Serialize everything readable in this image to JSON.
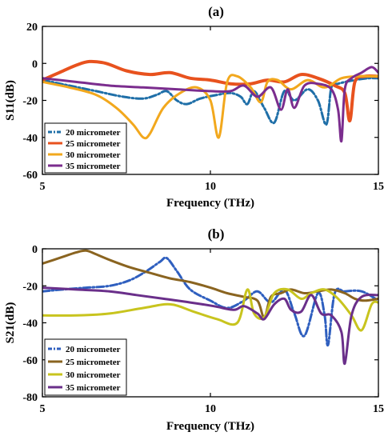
{
  "chart_data": [
    {
      "type": "line",
      "panel_label": "(a)",
      "xlabel": "Frequency (THz)",
      "ylabel": "S11(dB)",
      "xlim": [
        5,
        15
      ],
      "ylim": [
        -60,
        20
      ],
      "xticks": [
        5,
        10,
        15
      ],
      "yticks": [
        20,
        0,
        -20,
        -40,
        -60
      ],
      "grid": false,
      "legend_position": "lower-left",
      "series": [
        {
          "name": "20 micrometer",
          "color": "#1f6fa8",
          "style": "dashdot",
          "x": [
            5.0,
            5.8,
            6.6,
            7.4,
            8.0,
            8.4,
            8.7,
            9.0,
            9.3,
            9.7,
            10.2,
            10.6,
            10.9,
            11.1,
            11.3,
            11.6,
            11.9,
            12.2,
            12.5,
            12.9,
            13.2,
            13.45,
            13.6,
            13.8,
            14.3,
            14.7,
            15.0
          ],
          "y": [
            -9,
            -12,
            -15,
            -18,
            -19,
            -17,
            -15,
            -20,
            -22,
            -19,
            -17,
            -16,
            -18,
            -22,
            -15,
            -24,
            -32,
            -15,
            -20,
            -14,
            -20,
            -33,
            -13,
            -11,
            -9,
            -8,
            -8
          ]
        },
        {
          "name": "25 micrometer",
          "color": "#e8521e",
          "style": "solid",
          "x": [
            5.0,
            5.5,
            6.0,
            6.4,
            6.9,
            7.5,
            8.2,
            8.8,
            9.4,
            10.0,
            10.6,
            11.2,
            11.7,
            12.2,
            12.7,
            13.2,
            13.7,
            14.0,
            14.15,
            14.3,
            14.6,
            15.0
          ],
          "y": [
            -9,
            -5,
            -1,
            1,
            0,
            -4,
            -6,
            -5,
            -8,
            -9,
            -11,
            -11,
            -9,
            -10,
            -6,
            -8,
            -12,
            -16,
            -31,
            -10,
            -7,
            -7
          ]
        },
        {
          "name": "30 micrometer",
          "color": "#f2a81d",
          "style": "solid",
          "x": [
            5.0,
            5.8,
            6.6,
            7.2,
            7.7,
            8.0,
            8.2,
            8.6,
            9.1,
            9.6,
            10.0,
            10.25,
            10.5,
            10.8,
            11.2,
            11.5,
            11.7,
            12.0,
            12.4,
            12.9,
            13.4,
            13.9,
            14.4,
            15.0
          ],
          "y": [
            -10,
            -13,
            -17,
            -24,
            -33,
            -40,
            -38,
            -24,
            -16,
            -13,
            -20,
            -40,
            -10,
            -7,
            -13,
            -21,
            -10,
            -9,
            -14,
            -9,
            -13,
            -8,
            -7,
            -7
          ]
        },
        {
          "name": "35 micrometer",
          "color": "#7b2d8e",
          "style": "solid",
          "x": [
            5.0,
            6.0,
            7.0,
            8.0,
            9.0,
            10.0,
            10.6,
            11.0,
            11.4,
            11.8,
            12.1,
            12.3,
            12.5,
            12.8,
            13.2,
            13.6,
            13.8,
            13.9,
            14.0,
            14.2,
            14.5,
            14.8,
            15.0
          ],
          "y": [
            -8,
            -10,
            -12,
            -13,
            -14,
            -15,
            -15,
            -12,
            -18,
            -13,
            -25,
            -14,
            -24,
            -12,
            -11,
            -14,
            -25,
            -42,
            -14,
            -8,
            -5,
            -2,
            -5
          ]
        }
      ]
    },
    {
      "type": "line",
      "panel_label": "(b)",
      "xlabel": "Frequency (THz)",
      "ylabel": "S21(dB)",
      "xlim": [
        5,
        15
      ],
      "ylim": [
        -80,
        0
      ],
      "xticks": [
        5,
        10,
        15
      ],
      "yticks": [
        0,
        -20,
        -40,
        -60,
        -80
      ],
      "grid": false,
      "legend_position": "lower-left",
      "series": [
        {
          "name": "20 micrometer",
          "color": "#2f5fbf",
          "style": "dashdot",
          "x": [
            5.0,
            5.6,
            6.3,
            7.0,
            7.6,
            8.1,
            8.5,
            8.7,
            9.0,
            9.4,
            10.0,
            10.5,
            11.0,
            11.4,
            11.8,
            12.2,
            12.5,
            12.8,
            13.2,
            13.4,
            13.5,
            13.7,
            14.0,
            14.5,
            15.0
          ],
          "y": [
            -23,
            -22,
            -21,
            -20,
            -17,
            -12,
            -7,
            -5,
            -12,
            -22,
            -28,
            -32,
            -28,
            -23,
            -29,
            -22,
            -35,
            -47,
            -24,
            -36,
            -52,
            -24,
            -23,
            -23,
            -28
          ]
        },
        {
          "name": "25 micrometer",
          "color": "#8a6420",
          "style": "solid",
          "x": [
            5.0,
            5.5,
            6.0,
            6.3,
            6.6,
            7.0,
            7.6,
            8.2,
            8.8,
            9.4,
            10.0,
            10.5,
            11.0,
            11.4,
            11.6,
            11.8,
            12.1,
            12.4,
            12.8,
            13.2,
            13.6,
            14.0,
            14.3,
            14.6,
            15.0
          ],
          "y": [
            -8,
            -5,
            -2,
            -1,
            -3,
            -6,
            -10,
            -13,
            -16,
            -18,
            -21,
            -24,
            -26,
            -28,
            -37,
            -26,
            -24,
            -22,
            -24,
            -23,
            -22,
            -24,
            -27,
            -28,
            -27
          ]
        },
        {
          "name": "30 micrometer",
          "color": "#c8c41e",
          "style": "solid",
          "x": [
            5.0,
            6.0,
            7.0,
            8.0,
            8.8,
            9.5,
            10.2,
            10.8,
            11.1,
            11.3,
            11.6,
            11.9,
            12.3,
            12.7,
            13.0,
            13.4,
            13.8,
            14.2,
            14.5,
            14.8,
            15.0
          ],
          "y": [
            -36,
            -36,
            -35,
            -32,
            -30,
            -34,
            -38,
            -40,
            -22,
            -35,
            -37,
            -24,
            -22,
            -27,
            -24,
            -22,
            -27,
            -36,
            -44,
            -30,
            -29
          ]
        },
        {
          "name": "35 micrometer",
          "color": "#6a2f8a",
          "style": "solid",
          "x": [
            5.0,
            6.0,
            7.0,
            7.8,
            8.6,
            9.4,
            10.1,
            10.7,
            11.0,
            11.4,
            11.6,
            11.9,
            12.2,
            12.4,
            12.7,
            13.0,
            13.3,
            13.6,
            13.9,
            14.0,
            14.2,
            14.5,
            15.0
          ],
          "y": [
            -21,
            -22,
            -23,
            -25,
            -27,
            -29,
            -31,
            -33,
            -31,
            -35,
            -38,
            -30,
            -27,
            -33,
            -34,
            -25,
            -35,
            -36,
            -45,
            -62,
            -36,
            -26,
            -25
          ]
        }
      ]
    }
  ]
}
